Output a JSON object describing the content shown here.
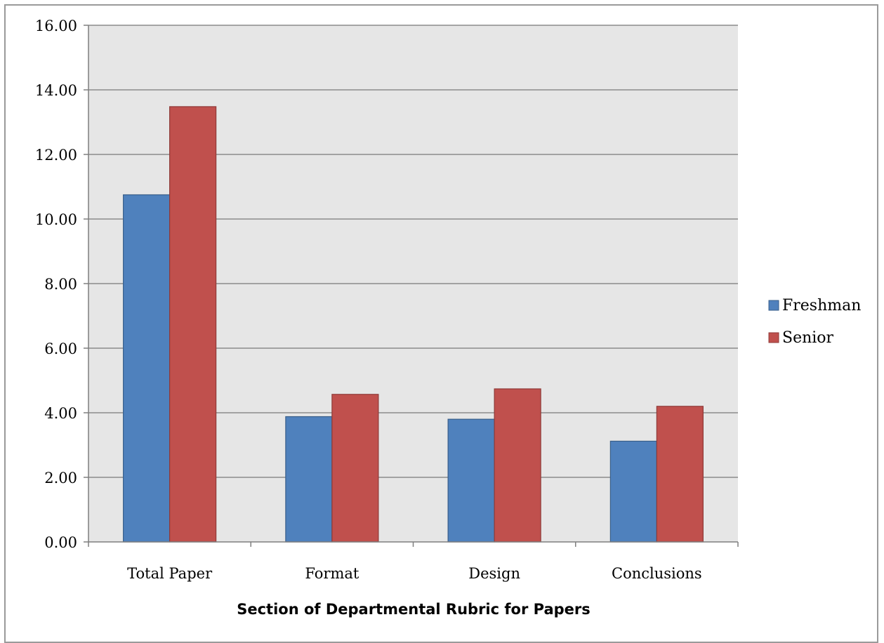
{
  "chart_data": {
    "type": "bar",
    "title": "",
    "xlabel": "Section of Departmental Rubric for Papers",
    "ylabel": "",
    "ylim": [
      0,
      16
    ],
    "ytick_step": 2,
    "ytick_labels": [
      "0.00",
      "2.00",
      "4.00",
      "6.00",
      "8.00",
      "10.00",
      "12.00",
      "14.00",
      "16.00"
    ],
    "categories": [
      "Total Paper",
      "Format",
      "Design",
      "Conclusions"
    ],
    "series": [
      {
        "name": "Freshman",
        "color": "#4f81bd",
        "values": [
          10.75,
          3.88,
          3.8,
          3.12
        ]
      },
      {
        "name": "Senior",
        "color": "#c0504d",
        "values": [
          13.48,
          4.57,
          4.74,
          4.2
        ]
      }
    ],
    "grid": true,
    "plot_background": "#e6e6e6",
    "legend_position": "right"
  }
}
